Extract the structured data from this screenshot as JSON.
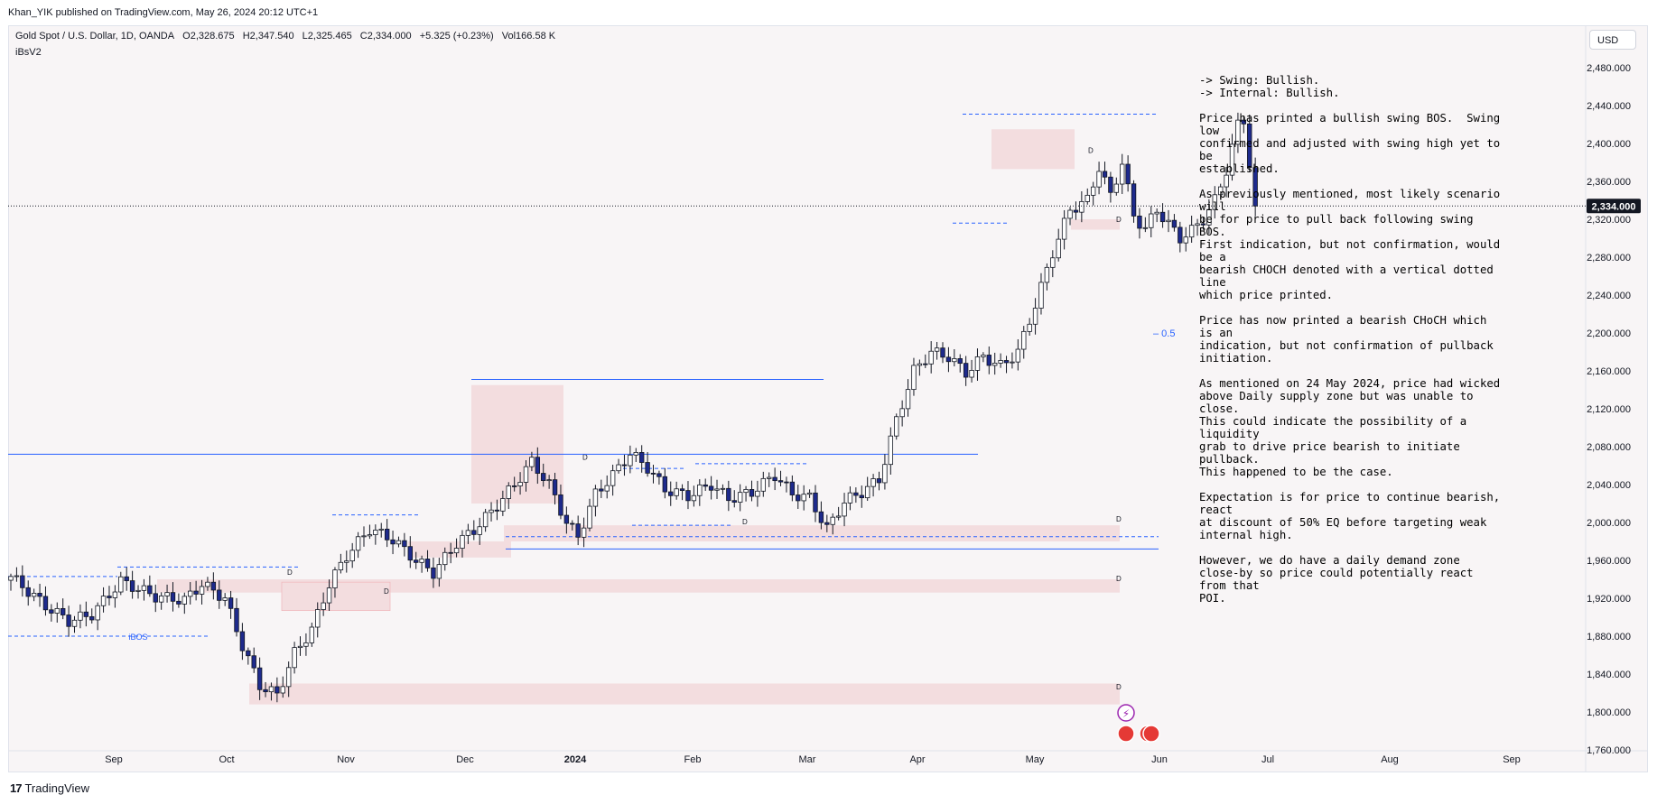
{
  "publisher": "Khan_YIK published on TradingView.com, May 26, 2024 20:12 UTC+1",
  "legend": {
    "symbol": "Gold Spot / U.S. Dollar, 1D, OANDA",
    "open": "O2,328.675",
    "high": "H2,347.540",
    "low": "L2,325.465",
    "close": "C2,334.000",
    "change": "+5.325 (+0.23%)",
    "volume": "Vol166.58 K"
  },
  "indicator": "iBsV2",
  "currency_button": "USD",
  "last_price": "2,334.000",
  "footer": {
    "brand": "TradingView",
    "brand_mark": "17"
  },
  "notes": [
    "-> Swing: Bullish.\n-> Internal: Bullish.",
    "Price has printed a bullish swing BOS.  Swing low\nconfirmed and adjusted with swing high yet to be\nestablished.",
    "As previously mentioned, most likely scenario will\nbe for price to pull back following swing BOS.\nFirst indication, but not confirmation, would be a\nbearish CHOCH denoted with a vertical dotted line\nwhich price printed.",
    "Price has now printed a bearish CHoCH which is an\nindication, but not confirmation of pullback\ninitiation.",
    "As mentioned on 24 May 2024, price had wicked\nabove Daily supply zone but was unable to close.\nThis could indicate the possibility of a liquidity\ngrab to drive price bearish to initiate pullback.\nThis happened to be the case.",
    "Expectation is for price to continue bearish, react\nat discount of 50% EQ before targeting weak\ninternal high.",
    "However, we do have a daily demand zone\nclose-by so price could potentially react from that\nPOI."
  ],
  "colors": {
    "bull": "#ffffff",
    "bear": "#1e2a8c",
    "wick": "#131722",
    "zone": "#f3dddf",
    "level": "#2962ff",
    "background": "#f8f5f6"
  },
  "chart_data": {
    "type": "candlestick",
    "y_tick_labels": [
      "2,480.000",
      "2,440.000",
      "2,400.000",
      "2,360.000",
      "2,320.000",
      "2,280.000",
      "2,240.000",
      "2,200.000",
      "2,160.000",
      "2,120.000",
      "2,080.000",
      "2,040.000",
      "2,000.000",
      "1,960.000",
      "1,920.000",
      "1,880.000",
      "1,840.000",
      "1,800.000",
      "1,760.000"
    ],
    "y_ticks": [
      2480,
      2440,
      2400,
      2360,
      2320,
      2280,
      2240,
      2200,
      2160,
      2120,
      2080,
      2040,
      2000,
      1960,
      1920,
      1880,
      1840,
      1800,
      1760
    ],
    "ylim": [
      1735,
      2510
    ],
    "x_tick_labels": [
      "Sep",
      "Oct",
      "Nov",
      "Dec",
      "2024",
      "Feb",
      "Mar",
      "Apr",
      "May",
      "Jun",
      "Jul",
      "Aug",
      "Sep"
    ],
    "last_price": 2334,
    "annotations": {
      "eq_label": "0.5",
      "ibos_label": "iBOS",
      "zone_label": "D"
    },
    "anchors": [
      {
        "i": 0,
        "c": 1943
      },
      {
        "i": 6,
        "c": 1912
      },
      {
        "i": 10,
        "c": 1896
      },
      {
        "i": 14,
        "c": 1903
      },
      {
        "i": 19,
        "c": 1938
      },
      {
        "i": 25,
        "c": 1922
      },
      {
        "i": 30,
        "c": 1918
      },
      {
        "i": 33,
        "c": 1935
      },
      {
        "i": 37,
        "c": 1920
      },
      {
        "i": 40,
        "c": 1870
      },
      {
        "i": 43,
        "c": 1828
      },
      {
        "i": 46,
        "c": 1818
      },
      {
        "i": 49,
        "c": 1862
      },
      {
        "i": 52,
        "c": 1887
      },
      {
        "i": 55,
        "c": 1935
      },
      {
        "i": 58,
        "c": 1965
      },
      {
        "i": 62,
        "c": 1993
      },
      {
        "i": 66,
        "c": 1982
      },
      {
        "i": 70,
        "c": 1960
      },
      {
        "i": 73,
        "c": 1947
      },
      {
        "i": 77,
        "c": 1978
      },
      {
        "i": 80,
        "c": 1992
      },
      {
        "i": 84,
        "c": 2018
      },
      {
        "i": 87,
        "c": 2040
      },
      {
        "i": 90,
        "c": 2064
      },
      {
        "i": 93,
        "c": 2040
      },
      {
        "i": 96,
        "c": 2000
      },
      {
        "i": 98,
        "c": 1985
      },
      {
        "i": 101,
        "c": 2030
      },
      {
        "i": 104,
        "c": 2050
      },
      {
        "i": 107,
        "c": 2073
      },
      {
        "i": 110,
        "c": 2058
      },
      {
        "i": 113,
        "c": 2035
      },
      {
        "i": 117,
        "c": 2028
      },
      {
        "i": 121,
        "c": 2040
      },
      {
        "i": 124,
        "c": 2025
      },
      {
        "i": 128,
        "c": 2032
      },
      {
        "i": 132,
        "c": 2050
      },
      {
        "i": 135,
        "c": 2030
      },
      {
        "i": 138,
        "c": 2026
      },
      {
        "i": 141,
        "c": 1993
      },
      {
        "i": 144,
        "c": 2022
      },
      {
        "i": 147,
        "c": 2032
      },
      {
        "i": 150,
        "c": 2045
      },
      {
        "i": 153,
        "c": 2108
      },
      {
        "i": 156,
        "c": 2160
      },
      {
        "i": 159,
        "c": 2180
      },
      {
        "i": 162,
        "c": 2175
      },
      {
        "i": 165,
        "c": 2158
      },
      {
        "i": 168,
        "c": 2175
      },
      {
        "i": 171,
        "c": 2165
      },
      {
        "i": 174,
        "c": 2180
      },
      {
        "i": 177,
        "c": 2230
      },
      {
        "i": 180,
        "c": 2285
      },
      {
        "i": 183,
        "c": 2330
      },
      {
        "i": 186,
        "c": 2340
      },
      {
        "i": 188,
        "c": 2375
      },
      {
        "i": 190,
        "c": 2345
      },
      {
        "i": 192,
        "c": 2380
      },
      {
        "i": 194,
        "c": 2323
      },
      {
        "i": 196,
        "c": 2310
      },
      {
        "i": 198,
        "c": 2330
      },
      {
        "i": 200,
        "c": 2315
      },
      {
        "i": 202,
        "c": 2300
      },
      {
        "i": 204,
        "c": 2308
      },
      {
        "i": 206,
        "c": 2320
      },
      {
        "i": 208,
        "c": 2340
      },
      {
        "i": 210,
        "c": 2372
      },
      {
        "i": 212,
        "c": 2420
      },
      {
        "i": 213,
        "c": 2425
      },
      {
        "i": 214,
        "c": 2378
      },
      {
        "i": 215,
        "c": 2334
      }
    ]
  }
}
